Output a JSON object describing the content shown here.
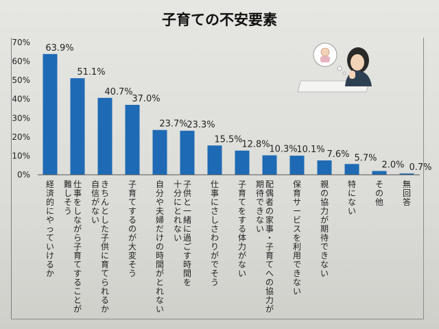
{
  "chart_data": {
    "type": "bar",
    "title": "子育ての不安要素",
    "ylim": [
      0,
      70
    ],
    "y_ticks": [
      "0%",
      "10%",
      "20%",
      "30%",
      "40%",
      "50%",
      "60%",
      "70%"
    ],
    "bar_color": "#1e6ab4",
    "categories": [
      [
        "経済的にやっていけるか"
      ],
      [
        "仕事をしながら子育てすることが",
        "難しそう"
      ],
      [
        "きちんとした子供に育てられるか",
        "自信がない"
      ],
      [
        "子育てするのが大変そう"
      ],
      [
        "自分や夫婦だけの時間がとれない"
      ],
      [
        "子供と一緒に過ごす時間を",
        "十分にとれない"
      ],
      [
        "仕事にさしさわりがでそう"
      ],
      [
        "子育てをする体力がない"
      ],
      [
        "配偶者の家事・子育てへの協力が",
        "期待できない"
      ],
      [
        "保育サービスを利用できない"
      ],
      [
        "親の協力が期待できない"
      ],
      [
        "特にない"
      ],
      [
        "その他"
      ],
      [
        "無回答"
      ]
    ],
    "values": [
      63.9,
      51.1,
      40.7,
      37.0,
      23.7,
      23.3,
      15.5,
      12.8,
      10.3,
      10.1,
      7.6,
      5.7,
      2.0,
      0.7
    ],
    "value_labels": [
      "63.9%",
      "51.1%",
      "40.7%",
      "37.0%",
      "23.7%",
      "23.3%",
      "15.5%",
      "12.8%",
      "10.3%",
      "10.1%",
      "7.6%",
      "5.7%",
      "2.0%",
      "0.7%"
    ]
  }
}
